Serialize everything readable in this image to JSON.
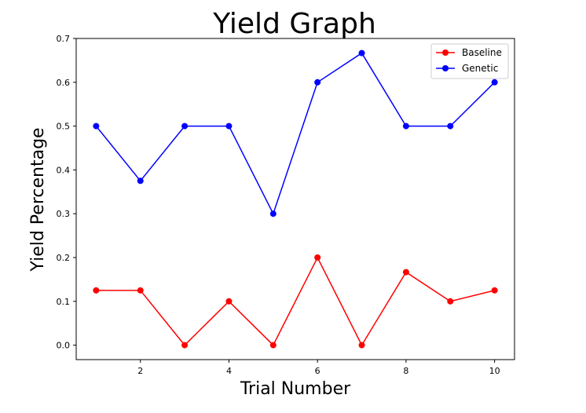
{
  "chart_data": {
    "type": "line",
    "title": "Yield Graph",
    "xlabel": "Trial Number",
    "ylabel": "Yield Percentage",
    "x": [
      1,
      2,
      3,
      4,
      5,
      6,
      7,
      8,
      9,
      10
    ],
    "xlim": [
      0.55,
      10.45
    ],
    "ylim": [
      -0.033,
      0.7
    ],
    "xticks": [
      2,
      4,
      6,
      8,
      10
    ],
    "yticks": [
      0.0,
      0.1,
      0.2,
      0.3,
      0.4,
      0.5,
      0.6,
      0.7
    ],
    "xtick_labels": [
      "2",
      "4",
      "6",
      "8",
      "10"
    ],
    "ytick_labels": [
      "0.0",
      "0.1",
      "0.2",
      "0.3",
      "0.4",
      "0.5",
      "0.6",
      "0.7"
    ],
    "grid": false,
    "legend_position": "top-right",
    "series": [
      {
        "name": "Baseline",
        "color": "#ff0000",
        "values": [
          0.125,
          0.125,
          0.0,
          0.1,
          0.0,
          0.2,
          0.0,
          0.1667,
          0.1,
          0.125
        ]
      },
      {
        "name": "Genetic",
        "color": "#0000ff",
        "values": [
          0.5,
          0.375,
          0.5,
          0.5,
          0.3,
          0.6,
          0.6667,
          0.5,
          0.5,
          0.6
        ]
      }
    ]
  }
}
